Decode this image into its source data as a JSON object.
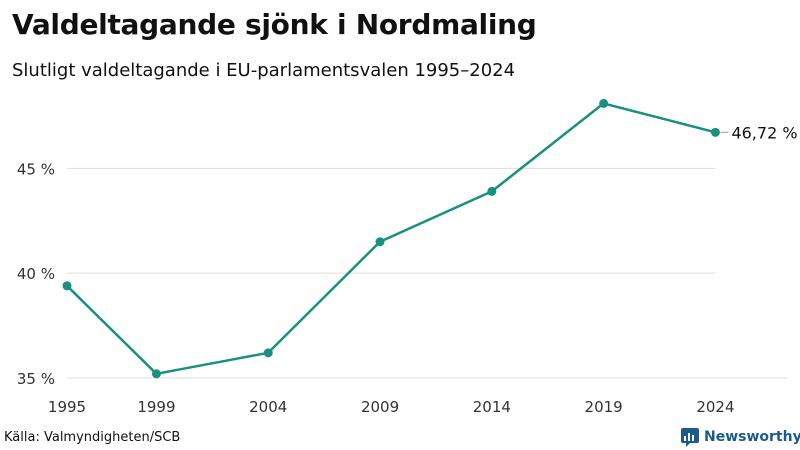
{
  "title": "Valdeltagande sjönk i Nordmaling",
  "subtitle": "Slutligt valdeltagande i EU-parlamentsvalen 1995–2024",
  "source": "Källa: Valmyndigheten/SCB",
  "brand": "Newsworthy",
  "colors": {
    "line": "#1a9080",
    "grid": "#dddddd",
    "brand": "#1a5a8c"
  },
  "chart_data": {
    "type": "line",
    "title": "Valdeltagande sjönk i Nordmaling",
    "subtitle": "Slutligt valdeltagande i EU-parlamentsvalen 1995–2024",
    "xlabel": "",
    "ylabel": "",
    "x": [
      1995,
      1999,
      2004,
      2009,
      2014,
      2019,
      2024
    ],
    "values": [
      39.4,
      35.2,
      36.2,
      41.5,
      43.9,
      48.1,
      46.72
    ],
    "xlim": [
      1995,
      2027.2
    ],
    "ylim": [
      35,
      48.5
    ],
    "y_ticks": [
      35,
      40,
      45
    ],
    "y_tick_labels": [
      "35 %",
      "40 %",
      "45 %"
    ],
    "x_tick_labels": [
      "1995",
      "1999",
      "2004",
      "2009",
      "2014",
      "2019",
      "2024"
    ],
    "end_label": "46,72 %",
    "grid": true,
    "legend": "none"
  }
}
